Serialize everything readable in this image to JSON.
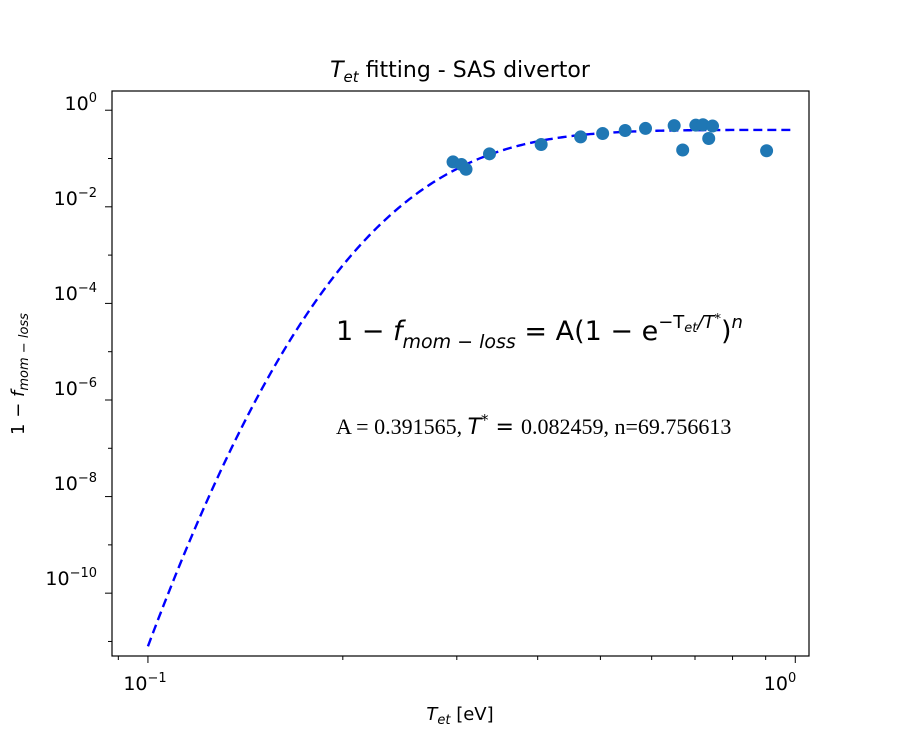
{
  "chart_data": {
    "type": "scatter",
    "title": {
      "sym": "T",
      "sub": "et",
      "rest": " fitting - SAS divertor"
    },
    "xlabel": {
      "sym": "T",
      "sub": "et",
      "rest": " [eV]"
    },
    "ylabel": {
      "pre": "1 − ",
      "sym": "f",
      "sub": "mom − loss"
    },
    "x_scale": "log",
    "y_scale": "log",
    "xlim": [
      0.088,
      1.05
    ],
    "ylim": [
      5e-12,
      2.5
    ],
    "x_ticks": [
      {
        "value": 0.1,
        "base": "10",
        "exp": "−1"
      },
      {
        "value": 1.0,
        "base": "10",
        "exp": "0"
      }
    ],
    "y_ticks": [
      {
        "value": 1,
        "base": "10",
        "exp": "0"
      },
      {
        "value": 0.01,
        "base": "10",
        "exp": "−2"
      },
      {
        "value": 0.0001,
        "base": "10",
        "exp": "−4"
      },
      {
        "value": 1e-06,
        "base": "10",
        "exp": "−6"
      },
      {
        "value": 1e-08,
        "base": "10",
        "exp": "−8"
      },
      {
        "value": 1e-10,
        "base": "10",
        "exp": "−10"
      }
    ],
    "grid": false,
    "series": [
      {
        "type": "scatter",
        "color": "#1f77b4",
        "points": [
          {
            "x": 0.296,
            "y": 0.085
          },
          {
            "x": 0.305,
            "y": 0.075
          },
          {
            "x": 0.31,
            "y": 0.06
          },
          {
            "x": 0.337,
            "y": 0.125
          },
          {
            "x": 0.405,
            "y": 0.195
          },
          {
            "x": 0.466,
            "y": 0.28
          },
          {
            "x": 0.504,
            "y": 0.33
          },
          {
            "x": 0.546,
            "y": 0.38
          },
          {
            "x": 0.587,
            "y": 0.42
          },
          {
            "x": 0.65,
            "y": 0.48
          },
          {
            "x": 0.67,
            "y": 0.15
          },
          {
            "x": 0.702,
            "y": 0.49
          },
          {
            "x": 0.72,
            "y": 0.5
          },
          {
            "x": 0.735,
            "y": 0.26
          },
          {
            "x": 0.745,
            "y": 0.47
          },
          {
            "x": 0.903,
            "y": 0.145
          }
        ]
      },
      {
        "type": "line",
        "style": "dashed",
        "color": "#0000ff",
        "function": "A*(1-exp(-x/Tstar))^n",
        "x_range": [
          0.1,
          1.0
        ]
      }
    ],
    "fit_params": {
      "A": 0.391565,
      "Tstar": 0.082459,
      "n": 69.756613
    },
    "annotations": {
      "formula": {
        "lhs_pre": "1 − ",
        "lhs_sym": "f",
        "lhs_sub": "mom − loss",
        "rhs": " = A(1 − e",
        "exp_pre": "−T",
        "exp_sub": "et",
        "exp_post": "/T",
        "exp_star": "*",
        "close": ")",
        "power": "n"
      },
      "params": {
        "a_text": "A = 0.391565, ",
        "t_sym": "T",
        "t_star": "*",
        "eq": " = ",
        "t_value": "0.082459, n=69.756613"
      }
    }
  }
}
